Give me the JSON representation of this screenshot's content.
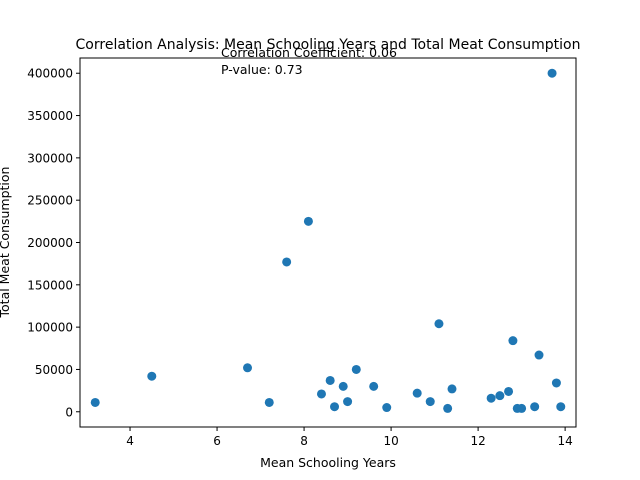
{
  "chart_data": {
    "type": "scatter",
    "title": "Correlation Analysis: Mean Schooling Years and Total Meat Consumption",
    "xlabel": "Mean Schooling Years",
    "ylabel": "Total Meat Consumption",
    "xlim": [
      2.85,
      14.25
    ],
    "ylim": [
      -18000,
      418000
    ],
    "xticks": [
      4,
      6,
      8,
      10,
      12,
      14
    ],
    "yticks": [
      0,
      50000,
      100000,
      150000,
      200000,
      250000,
      300000,
      350000,
      400000
    ],
    "grid": false,
    "marker_color": "#1f77b4",
    "annotations": [
      "Correlation Coefficient: 0.06",
      "P-value: 0.73"
    ],
    "points": [
      {
        "x": 3.2,
        "y": 11000
      },
      {
        "x": 4.5,
        "y": 42000
      },
      {
        "x": 6.7,
        "y": 52000
      },
      {
        "x": 7.2,
        "y": 11000
      },
      {
        "x": 7.6,
        "y": 177000
      },
      {
        "x": 8.1,
        "y": 225000
      },
      {
        "x": 8.4,
        "y": 21000
      },
      {
        "x": 8.6,
        "y": 37000
      },
      {
        "x": 8.7,
        "y": 6000
      },
      {
        "x": 8.9,
        "y": 30000
      },
      {
        "x": 9.0,
        "y": 12000
      },
      {
        "x": 9.2,
        "y": 50000
      },
      {
        "x": 9.6,
        "y": 30000
      },
      {
        "x": 9.9,
        "y": 5000
      },
      {
        "x": 10.6,
        "y": 22000
      },
      {
        "x": 10.9,
        "y": 12000
      },
      {
        "x": 11.1,
        "y": 104000
      },
      {
        "x": 11.3,
        "y": 4000
      },
      {
        "x": 11.4,
        "y": 27000
      },
      {
        "x": 12.3,
        "y": 16000
      },
      {
        "x": 12.5,
        "y": 19000
      },
      {
        "x": 12.7,
        "y": 24000
      },
      {
        "x": 12.8,
        "y": 84000
      },
      {
        "x": 12.9,
        "y": 4000
      },
      {
        "x": 13.0,
        "y": 4000
      },
      {
        "x": 13.3,
        "y": 6000
      },
      {
        "x": 13.4,
        "y": 67000
      },
      {
        "x": 13.7,
        "y": 400000
      },
      {
        "x": 13.8,
        "y": 34000
      },
      {
        "x": 13.9,
        "y": 6000
      }
    ]
  }
}
